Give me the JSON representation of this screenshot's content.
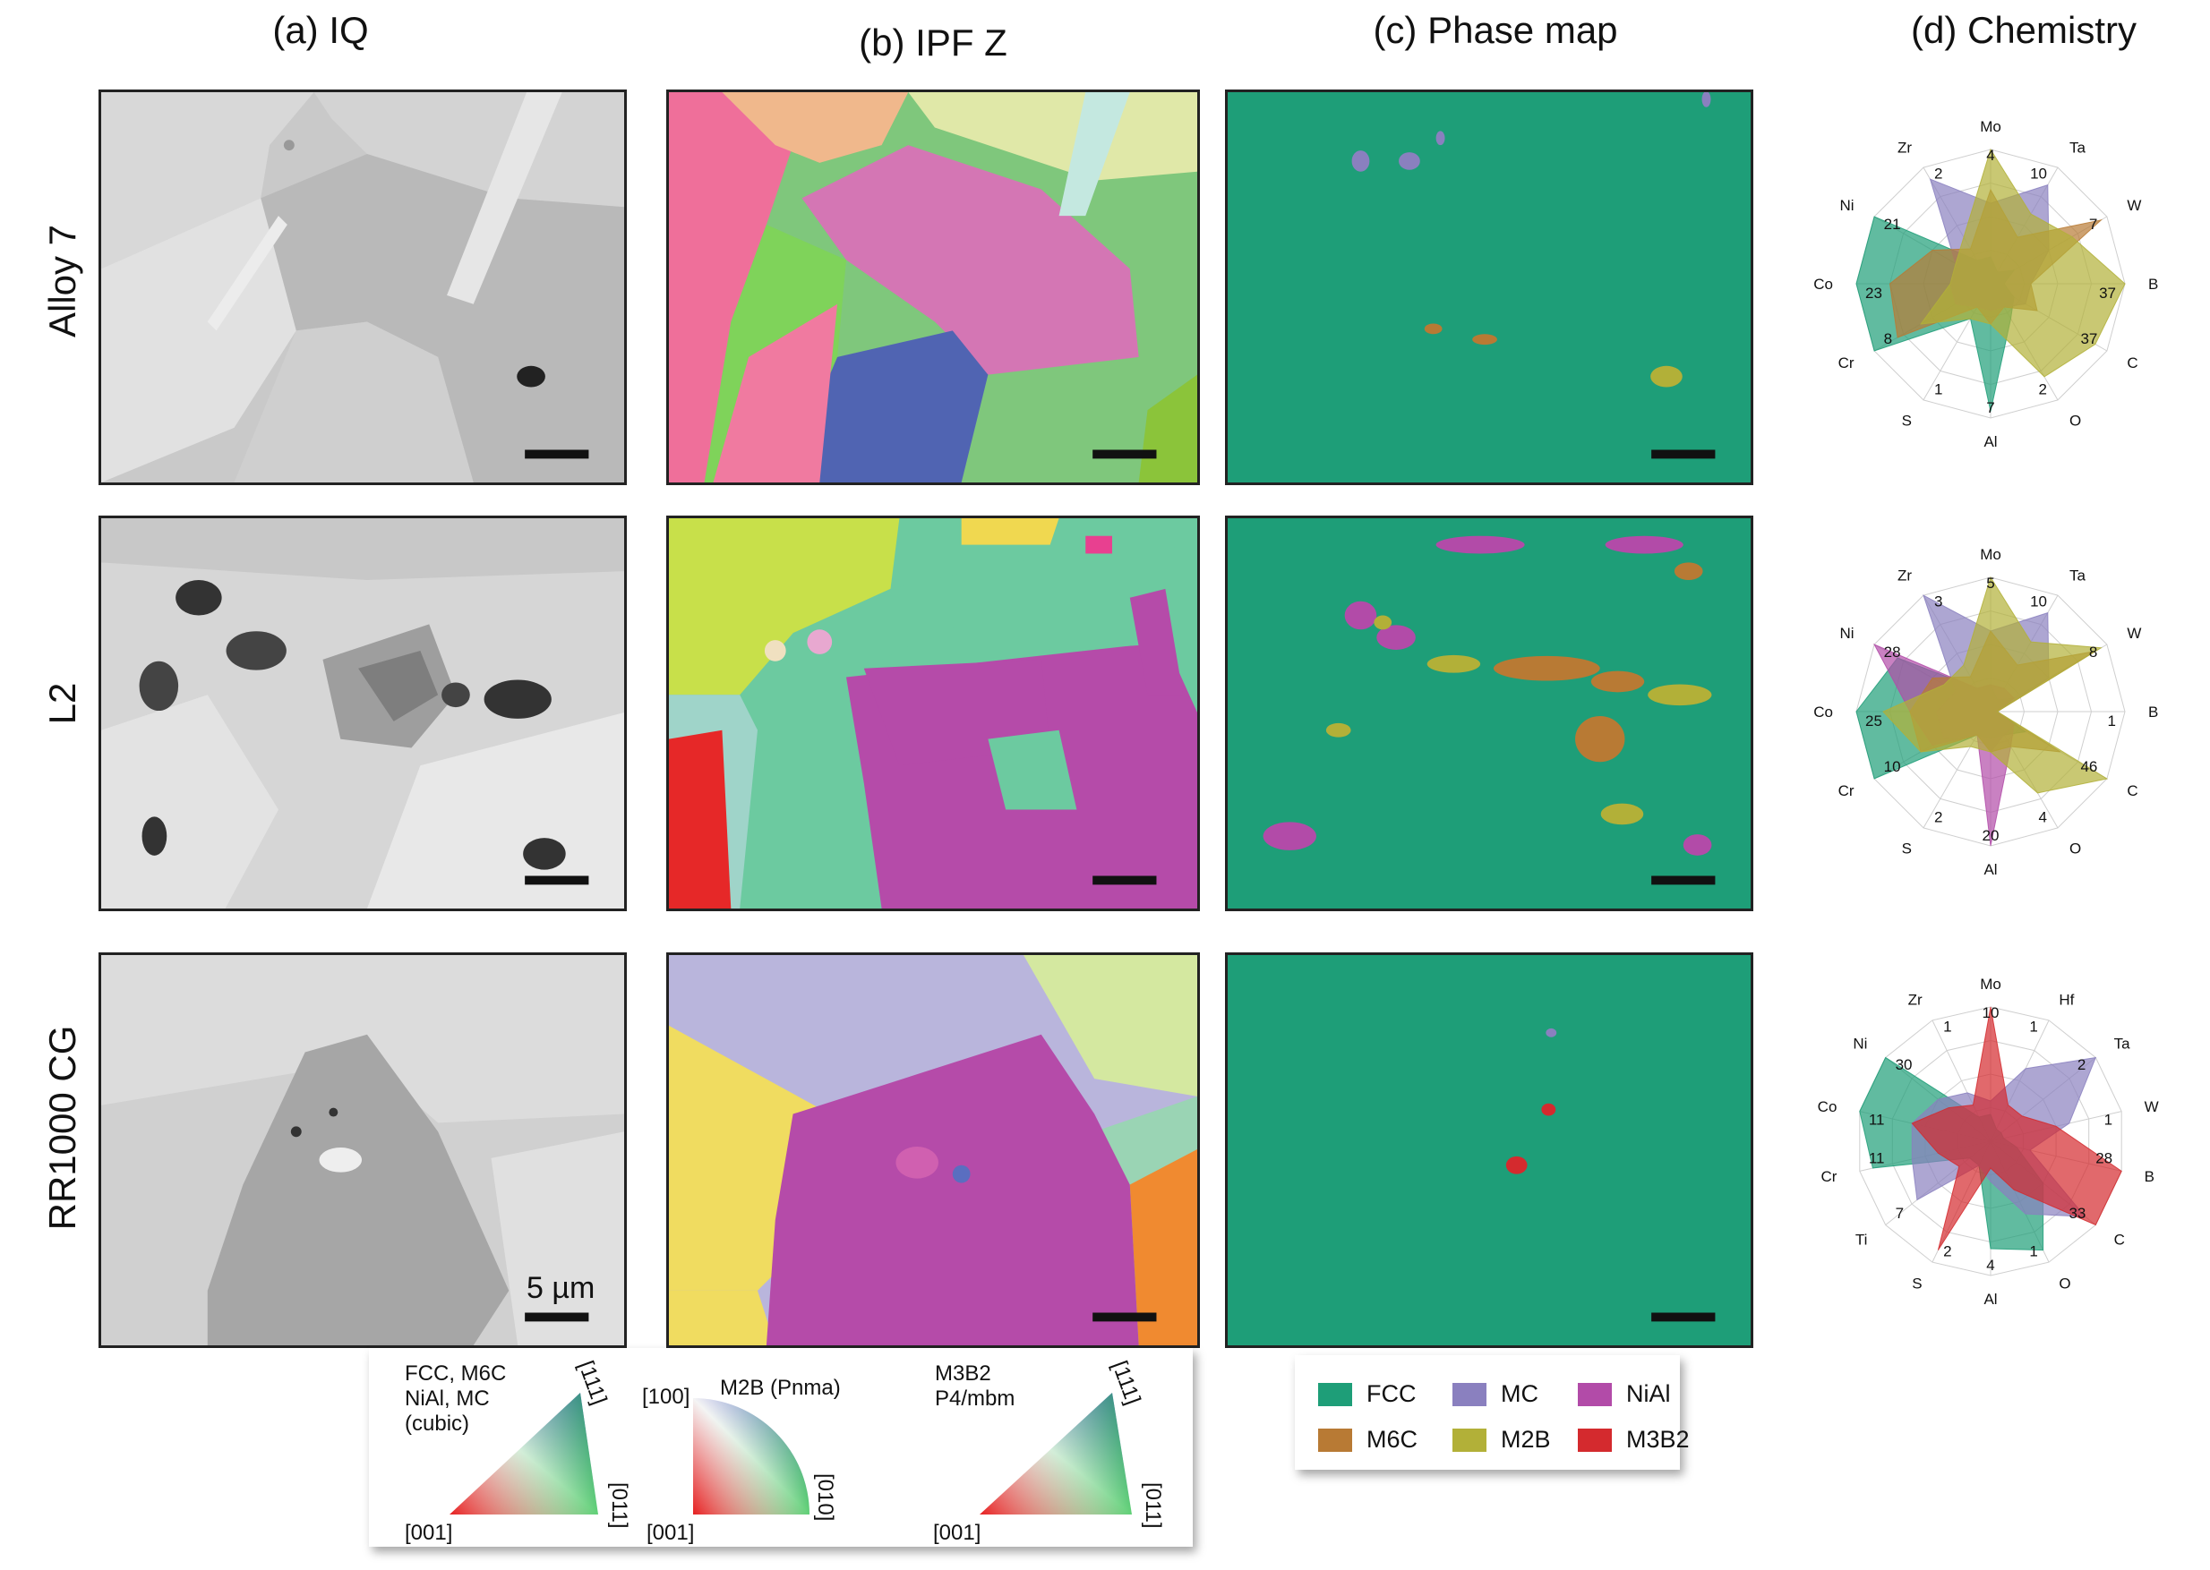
{
  "columns": [
    "(a) IQ",
    "(b) IPF Z",
    "(c) Phase map",
    "(d) Chemistry"
  ],
  "rows": [
    "Alloy 7",
    "L2",
    "RR1000 CG"
  ],
  "scale_bar_label": "5 µm",
  "ipf_legends": [
    {
      "label_lines": [
        "FCC, M6C",
        "NiAl, MC",
        "(cubic)"
      ],
      "corners": [
        "[001]",
        "[011]",
        "[111]"
      ],
      "shape": "triangle"
    },
    {
      "label_lines": [
        "M2B (Pnma)"
      ],
      "corners": [
        "[001]",
        "[010]",
        "[100]"
      ],
      "shape": "quarter"
    },
    {
      "label_lines": [
        "M3B2",
        "P4/mbm"
      ],
      "corners": [
        "[001]",
        "[011]",
        "[111]"
      ],
      "shape": "triangle"
    }
  ],
  "phase_legend": [
    {
      "label": "FCC",
      "color": "#1e9e78"
    },
    {
      "label": "MC",
      "color": "#8a80bf"
    },
    {
      "label": "NiAl",
      "color": "#b24ba8"
    },
    {
      "label": "M6C",
      "color": "#b87a34"
    },
    {
      "label": "M2B",
      "color": "#b2b038"
    },
    {
      "label": "M3B2",
      "color": "#d42a2e"
    }
  ],
  "chemistry": [
    {
      "row": "Alloy 7",
      "axes": [
        "Mo",
        "Ta",
        "W",
        "B",
        "C",
        "O",
        "Al",
        "S",
        "Cr",
        "Co",
        "Ni",
        "Zr"
      ],
      "axis_max": [
        4,
        10,
        7,
        37,
        37,
        2,
        7,
        1,
        8,
        23,
        21,
        2
      ],
      "series": [
        {
          "color": "#1e9e78",
          "values": [
            0.2,
            0.1,
            0.2,
            0.1,
            0.2,
            0.3,
            0.95,
            0.3,
            1.0,
            1.0,
            1.0,
            0.2
          ]
        },
        {
          "color": "#8a80bf",
          "values": [
            0.6,
            0.85,
            0.5,
            0.3,
            0.3,
            0.2,
            0.2,
            0.2,
            0.3,
            0.3,
            0.3,
            0.9
          ]
        },
        {
          "color": "#b87a34",
          "values": [
            0.7,
            0.4,
            0.95,
            0.3,
            0.4,
            0.2,
            0.3,
            0.2,
            0.8,
            0.75,
            0.5,
            0.3
          ]
        },
        {
          "color": "#b2b038",
          "values": [
            1.0,
            0.6,
            0.7,
            1.0,
            0.9,
            0.8,
            0.3,
            0.3,
            0.6,
            0.3,
            0.3,
            0.4
          ]
        }
      ]
    },
    {
      "row": "L2",
      "axes": [
        "Mo",
        "Ta",
        "W",
        "B",
        "C",
        "O",
        "Al",
        "S",
        "Cr",
        "Co",
        "Ni",
        "Zr"
      ],
      "axis_max": [
        5,
        10,
        8,
        1,
        46,
        4,
        20,
        2,
        10,
        25,
        28,
        3
      ],
      "series": [
        {
          "color": "#1e9e78",
          "values": [
            0.2,
            0.1,
            0.2,
            0.05,
            0.3,
            0.2,
            0.2,
            0.2,
            1.0,
            1.0,
            0.8,
            0.2
          ]
        },
        {
          "color": "#8a80bf",
          "values": [
            0.6,
            0.85,
            0.5,
            0.05,
            0.2,
            0.2,
            0.3,
            0.2,
            0.4,
            0.4,
            0.3,
            1.0
          ]
        },
        {
          "color": "#b24ba8",
          "values": [
            0.2,
            0.2,
            0.2,
            0.05,
            0.2,
            0.3,
            1.0,
            0.2,
            0.5,
            0.6,
            1.0,
            0.2
          ]
        },
        {
          "color": "#b87a34",
          "values": [
            0.6,
            0.4,
            0.9,
            0.05,
            0.6,
            0.3,
            0.3,
            0.2,
            0.6,
            0.6,
            0.5,
            0.3
          ]
        },
        {
          "color": "#b2b038",
          "values": [
            1.0,
            0.6,
            0.95,
            0.05,
            1.0,
            0.7,
            0.3,
            0.3,
            0.6,
            0.8,
            0.4,
            0.4
          ]
        }
      ]
    },
    {
      "row": "RR1000 CG",
      "axes": [
        "Mo",
        "Hf",
        "Ta",
        "W",
        "B",
        "C",
        "O",
        "Al",
        "S",
        "Ti",
        "Cr",
        "Co",
        "Ni",
        "Zr"
      ],
      "axis_max": [
        10,
        1,
        2,
        1,
        28,
        33,
        1,
        4,
        2,
        7,
        11,
        11,
        30,
        1
      ],
      "series": [
        {
          "color": "#1e9e78",
          "values": [
            0.2,
            0.1,
            0.1,
            0.1,
            0.2,
            0.5,
            0.9,
            0.8,
            0.2,
            0.2,
            0.9,
            1.0,
            1.0,
            0.2
          ]
        },
        {
          "color": "#8a80bf",
          "values": [
            0.3,
            0.6,
            1.0,
            0.6,
            0.3,
            0.9,
            0.6,
            0.3,
            0.2,
            0.7,
            0.6,
            0.6,
            0.5,
            0.4
          ]
        },
        {
          "color": "#d42a2e",
          "values": [
            1.0,
            0.3,
            0.3,
            0.5,
            1.0,
            1.0,
            0.4,
            0.2,
            0.9,
            0.3,
            0.4,
            0.6,
            0.4,
            0.3
          ]
        }
      ]
    }
  ]
}
